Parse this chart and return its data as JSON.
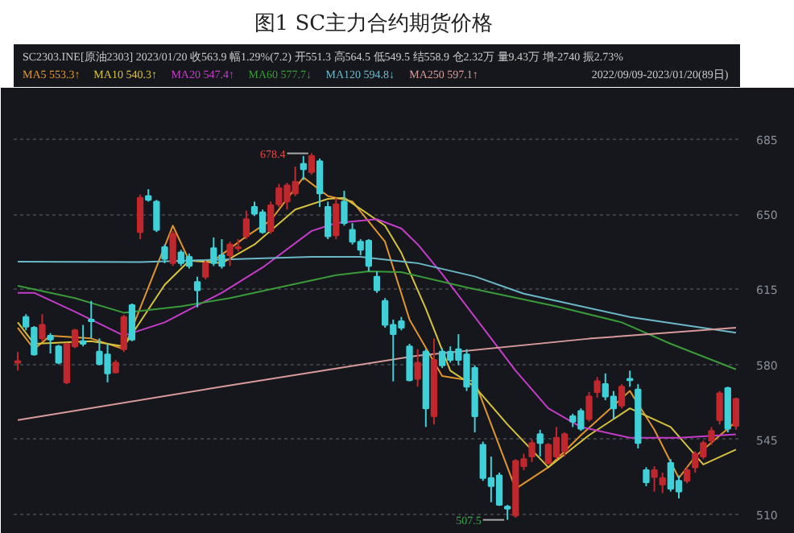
{
  "chart_data": {
    "type": "candlestick",
    "title": "图1  SC主力合约期货价格",
    "annotations": [
      "SC2303.INE[原油2303]",
      "2023/01/20",
      "收563.9",
      "幅1.29%(7.2)",
      "开551.3",
      "高564.5",
      "低549.5",
      "结558.9",
      "仓2.32万",
      "量9.43万",
      "增-2740",
      "振2.73%",
      "2022/09/09-2023/01/20(89日)",
      "678.4",
      "507.5"
    ],
    "categories": [
      null,
      null,
      null,
      null,
      null,
      null,
      null,
      null,
      null,
      null,
      null,
      null,
      null,
      null,
      null,
      null,
      null,
      null,
      null,
      null,
      null,
      null,
      null,
      null,
      null,
      null,
      null,
      null,
      null,
      null,
      null,
      null,
      null,
      null,
      null,
      null,
      null,
      null,
      null,
      null,
      null,
      null,
      null,
      null,
      null,
      null,
      null,
      null,
      null,
      null,
      null,
      null,
      null,
      null,
      null,
      null,
      null,
      null,
      null,
      null,
      null,
      null,
      null,
      null,
      null,
      null,
      null,
      null,
      null,
      null,
      null,
      null,
      null,
      null,
      null,
      null,
      null,
      null,
      null,
      null,
      null,
      null,
      null,
      null,
      null,
      null,
      null,
      null,
      null
    ],
    "ohlc": [
      [
        580.8,
        585.8,
        577.1,
        581.5
      ],
      [
        602.1,
        603.4,
        595.9,
        597.6
      ],
      [
        597.1,
        597.9,
        584.1,
        584.6
      ],
      [
        592.1,
        603.4,
        590.8,
        598.4
      ],
      [
        593.4,
        594.6,
        585.1,
        591.6
      ],
      [
        588.4,
        589.1,
        580.1,
        580.8
      ],
      [
        571.6,
        590.1,
        570.8,
        589.6
      ],
      [
        588.4,
        596.6,
        587.6,
        595.9
      ],
      [
        590.8,
        598.4,
        588.4,
        589.6
      ],
      [
        600.9,
        609.6,
        592.1,
        600.1
      ],
      [
        585.9,
        592.1,
        579.6,
        580.1
      ],
      [
        584.6,
        589.6,
        571.6,
        575.8
      ],
      [
        576.3,
        582.1,
        575.8,
        580.8
      ],
      [
        587.1,
        603.1,
        585.8,
        602.1
      ],
      [
        607.6,
        608.4,
        590.8,
        591.6
      ],
      [
        641.7,
        659.2,
        638.4,
        657.7
      ],
      [
        658.5,
        661.7,
        655.9,
        656.7
      ],
      [
        655.9,
        656.7,
        641.7,
        642.7
      ],
      [
        634.7,
        635.9,
        627.2,
        629.2
      ],
      [
        627.2,
        642.2,
        625.9,
        640.9
      ],
      [
        632.2,
        633.4,
        625.9,
        627.2
      ],
      [
        630.2,
        631.7,
        624.7,
        625.9
      ],
      [
        618.4,
        620.9,
        606.6,
        614.6
      ],
      [
        620.9,
        628.4,
        619.6,
        627.2
      ],
      [
        634.2,
        639.2,
        625.9,
        627.2
      ],
      [
        630.9,
        638.4,
        624.7,
        625.9
      ],
      [
        630.9,
        637.2,
        625.9,
        635.9
      ],
      [
        634.2,
        638.4,
        632.7,
        634.7
      ],
      [
        639.7,
        651.7,
        638.4,
        647.7
      ],
      [
        653.4,
        655.9,
        649.2,
        650.2
      ],
      [
        650.9,
        652.2,
        640.9,
        641.7
      ],
      [
        642.2,
        655.9,
        640.9,
        654.2
      ],
      [
        654.7,
        664.2,
        653.4,
        662.2
      ],
      [
        656.0,
        664.7,
        652.2,
        663.5
      ],
      [
        659.7,
        672.2,
        658.5,
        665.2
      ],
      [
        673.5,
        677.2,
        666.0,
        671.0
      ],
      [
        669.7,
        678.4,
        668.5,
        677.2
      ],
      [
        674.7,
        676.0,
        653.4,
        659.7
      ],
      [
        653.4,
        655.9,
        638.4,
        639.7
      ],
      [
        640.2,
        657.7,
        638.4,
        654.7
      ],
      [
        655.9,
        661.0,
        644.7,
        645.9
      ],
      [
        642.7,
        645.9,
        635.9,
        637.2
      ],
      [
        637.2,
        638.4,
        630.9,
        633.4
      ],
      [
        637.7,
        638.4,
        623.4,
        625.9
      ],
      [
        620.9,
        623.4,
        613.4,
        614.6
      ],
      [
        609.6,
        610.9,
        597.1,
        598.4
      ],
      [
        598.4,
        600.9,
        572.1,
        594.1
      ],
      [
        600.1,
        602.1,
        595.9,
        597.1
      ],
      [
        588.4,
        589.6,
        572.1,
        572.6
      ],
      [
        573.3,
        587.1,
        569.6,
        580.8
      ],
      [
        585.9,
        587.1,
        550.8,
        559.5
      ],
      [
        555.8,
        592.1,
        552.0,
        582.1
      ],
      [
        585.9,
        587.6,
        578.3,
        579.6
      ],
      [
        585.9,
        588.4,
        580.8,
        582.1
      ],
      [
        587.1,
        594.1,
        579.6,
        582.1
      ],
      [
        584.6,
        587.1,
        567.6,
        569.6
      ],
      [
        578.3,
        579.6,
        548.3,
        555.8
      ],
      [
        542.5,
        544.0,
        525.7,
        527.0
      ],
      [
        527.0,
        537.0,
        515.7,
        523.2
      ],
      [
        528.2,
        529.5,
        514.0,
        514.5
      ],
      [
        513.7,
        514.5,
        507.5,
        512.7
      ],
      [
        509.5,
        535.8,
        508.5,
        535.0
      ],
      [
        532.5,
        538.3,
        530.7,
        535.8
      ],
      [
        537.0,
        545.0,
        534.5,
        543.3
      ],
      [
        547.5,
        549.5,
        537.0,
        543.3
      ],
      [
        534.0,
        543.3,
        533.3,
        542.5
      ],
      [
        537.0,
        550.8,
        535.8,
        545.8
      ],
      [
        539.5,
        548.3,
        537.0,
        547.5
      ],
      [
        555.8,
        557.0,
        550.8,
        553.3
      ],
      [
        558.3,
        559.5,
        549.0,
        550.0
      ],
      [
        554.5,
        567.1,
        553.3,
        565.0
      ],
      [
        567.1,
        574.1,
        564.5,
        572.1
      ],
      [
        570.8,
        575.8,
        563.3,
        565.0
      ],
      [
        565.0,
        567.6,
        554.5,
        559.5
      ],
      [
        560.8,
        570.8,
        559.5,
        569.6
      ],
      [
        573.3,
        577.1,
        569.6,
        572.6
      ],
      [
        568.3,
        570.8,
        540.8,
        543.3
      ],
      [
        530.7,
        532.0,
        523.2,
        525.0
      ],
      [
        527.5,
        532.5,
        520.7,
        530.7
      ],
      [
        524.0,
        529.5,
        520.0,
        527.0
      ],
      [
        534.0,
        535.8,
        520.7,
        522.0
      ],
      [
        525.7,
        528.2,
        517.5,
        520.7
      ],
      [
        525.7,
        532.0,
        524.5,
        530.7
      ],
      [
        532.0,
        539.5,
        529.5,
        538.3
      ],
      [
        537.0,
        544.5,
        535.8,
        543.3
      ],
      [
        544.5,
        550.8,
        542.5,
        549.0
      ],
      [
        554.0,
        567.6,
        552.0,
        566.5
      ],
      [
        569.0,
        569.6,
        548.3,
        550.0
      ],
      [
        551.3,
        564.5,
        549.5,
        563.9
      ]
    ],
    "colors": [
      "#c0282d",
      "#3fd0d8",
      "#3fd0d8",
      "#c0282d",
      "#3fd0d8",
      "#3fd0d8",
      "#c0282d",
      "#c0282d",
      "#3fd0d8",
      "#3fd0d8",
      "#3fd0d8",
      "#3fd0d8",
      "#c0282d",
      "#c0282d",
      "#3fd0d8",
      "#c0282d",
      "#3fd0d8",
      "#3fd0d8",
      "#3fd0d8",
      "#c0282d",
      "#3fd0d8",
      "#3fd0d8",
      "#3fd0d8",
      "#c0282d",
      "#3fd0d8",
      "#3fd0d8",
      "#c0282d",
      "#c0282d",
      "#c0282d",
      "#3fd0d8",
      "#3fd0d8",
      "#c0282d",
      "#c0282d",
      "#c0282d",
      "#c0282d",
      "#3fd0d8",
      "#c0282d",
      "#3fd0d8",
      "#3fd0d8",
      "#c0282d",
      "#3fd0d8",
      "#3fd0d8",
      "#3fd0d8",
      "#3fd0d8",
      "#3fd0d8",
      "#3fd0d8",
      "#3fd0d8",
      "#3fd0d8",
      "#3fd0d8",
      "#c0282d",
      "#3fd0d8",
      "#c0282d",
      "#3fd0d8",
      "#3fd0d8",
      "#3fd0d8",
      "#3fd0d8",
      "#3fd0d8",
      "#3fd0d8",
      "#3fd0d8",
      "#3fd0d8",
      "#3fd0d8",
      "#c0282d",
      "#c0282d",
      "#c0282d",
      "#3fd0d8",
      "#c0282d",
      "#c0282d",
      "#c0282d",
      "#3fd0d8",
      "#3fd0d8",
      "#c0282d",
      "#c0282d",
      "#3fd0d8",
      "#3fd0d8",
      "#c0282d",
      "#3fd0d8",
      "#3fd0d8",
      "#3fd0d8",
      "#c0282d",
      "#c0282d",
      "#3fd0d8",
      "#3fd0d8",
      "#c0282d",
      "#c0282d",
      "#c0282d",
      "#c0282d",
      "#c0282d",
      "#3fd0d8",
      "#c0282d"
    ],
    "series": [
      {
        "type": "line",
        "name": "MA5 553.3↑",
        "color": "#e0952f",
        "values": [
          597.1,
          null,
          587.1,
          null,
          593.4,
          null,
          null,
          null,
          null,
          592.1,
          null,
          null,
          null,
          587.1,
          null,
          null,
          null,
          null,
          null,
          644.7,
          null,
          628.4,
          null,
          null,
          628.4,
          null,
          null,
          null,
          639.7,
          null,
          null,
          647.2,
          null,
          null,
          null,
          667.2,
          null,
          null,
          658.5,
          null,
          null,
          656.0,
          null,
          null,
          null,
          637.2,
          null,
          null,
          600.9,
          null,
          null,
          null,
          574.6,
          null,
          null,
          null,
          572.1,
          null,
          null,
          null,
          null,
          522.0,
          null,
          null,
          null,
          532.0,
          null,
          null,
          null,
          547.0,
          null,
          null,
          null,
          null,
          null,
          567.6,
          null,
          null,
          549.5,
          null,
          null,
          527.0,
          null,
          537.0,
          null,
          null,
          null,
          null,
          553.3
        ]
      },
      {
        "type": "line",
        "name": "MA10 540.3↑",
        "color": "#d6c23c",
        "values": [
          599.6,
          null,
          589.6,
          null,
          null,
          null,
          null,
          null,
          null,
          590.8,
          null,
          null,
          null,
          588.4,
          null,
          null,
          null,
          null,
          617.1,
          null,
          null,
          628.4,
          null,
          null,
          null,
          627.2,
          null,
          null,
          null,
          635.9,
          null,
          null,
          null,
          null,
          652.2,
          null,
          null,
          null,
          657.2,
          null,
          657.7,
          null,
          null,
          null,
          null,
          644.7,
          null,
          632.0,
          null,
          null,
          606.0,
          null,
          null,
          577.1,
          null,
          null,
          569.6,
          null,
          null,
          null,
          552.0,
          null,
          null,
          null,
          null,
          532.0,
          null,
          null,
          null,
          null,
          547.0,
          null,
          null,
          null,
          null,
          559.5,
          null,
          null,
          null,
          null,
          550.8,
          null,
          null,
          null,
          533.3,
          null,
          null,
          null,
          540.3
        ]
      },
      {
        "type": "line",
        "name": "MA20 547.4↑",
        "color": "#c43cc8",
        "values": [
          613.4,
          null,
          613.4,
          null,
          null,
          null,
          null,
          604.6,
          null,
          null,
          null,
          null,
          null,
          593.4,
          null,
          null,
          null,
          null,
          599.6,
          null,
          null,
          null,
          null,
          null,
          null,
          613.4,
          null,
          null,
          null,
          null,
          625.2,
          null,
          null,
          null,
          null,
          null,
          642.2,
          null,
          null,
          645.9,
          null,
          null,
          null,
          null,
          647.7,
          null,
          null,
          643.4,
          null,
          636.0,
          null,
          null,
          622.1,
          null,
          null,
          null,
          602.1,
          null,
          null,
          null,
          null,
          577.1,
          null,
          null,
          null,
          559.5,
          null,
          null,
          null,
          550.8,
          null,
          null,
          null,
          null,
          null,
          545.8,
          null,
          null,
          null,
          null,
          null,
          545.8,
          null,
          null,
          null,
          null,
          null,
          null,
          547.4
        ]
      },
      {
        "type": "line",
        "name": "MA60 577.7↓",
        "color": "#3a9a3a",
        "values": [
          616.6,
          null,
          null,
          null,
          null,
          null,
          null,
          610.9,
          null,
          null,
          null,
          null,
          null,
          604.1,
          null,
          null,
          null,
          null,
          null,
          null,
          607.1,
          null,
          null,
          null,
          null,
          null,
          610.9,
          null,
          null,
          null,
          null,
          null,
          615.9,
          null,
          null,
          null,
          null,
          null,
          null,
          621.6,
          null,
          null,
          null,
          623.4,
          null,
          null,
          null,
          623.0,
          null,
          null,
          null,
          null,
          null,
          null,
          null,
          615.9,
          null,
          null,
          null,
          null,
          null,
          null,
          null,
          null,
          null,
          null,
          607.1,
          null,
          null,
          null,
          null,
          null,
          null,
          null,
          599.6,
          null,
          null,
          null,
          null,
          null,
          589.6,
          null,
          null,
          null,
          null,
          null,
          null,
          null,
          577.7
        ]
      },
      {
        "type": "line",
        "name": "MA120 594.8↓",
        "color": "#6cb8c8",
        "values": [
          627.9,
          null,
          null,
          null,
          null,
          null,
          null,
          null,
          null,
          null,
          null,
          null,
          null,
          null,
          null,
          627.7,
          null,
          null,
          null,
          null,
          null,
          null,
          null,
          null,
          null,
          null,
          null,
          null,
          null,
          null,
          null,
          null,
          null,
          null,
          null,
          null,
          630.2,
          null,
          null,
          null,
          null,
          null,
          630.2,
          null,
          null,
          null,
          null,
          null,
          null,
          627.2,
          null,
          null,
          null,
          null,
          null,
          null,
          621.0,
          null,
          null,
          null,
          null,
          null,
          613.0,
          null,
          null,
          null,
          null,
          null,
          null,
          null,
          null,
          null,
          null,
          null,
          null,
          602.1,
          null,
          null,
          null,
          null,
          null,
          null,
          null,
          null,
          null,
          null,
          null,
          null,
          594.8
        ]
      },
      {
        "type": "line",
        "name": "MA250 597.1↑",
        "color": "#d89a9a",
        "values": [
          554.0,
          null,
          null,
          null,
          null,
          null,
          null,
          null,
          null,
          null,
          null,
          null,
          null,
          null,
          null,
          null,
          null,
          null,
          null,
          null,
          null,
          null,
          null,
          null,
          null,
          569.6,
          null,
          null,
          null,
          null,
          null,
          null,
          null,
          null,
          null,
          null,
          null,
          null,
          null,
          null,
          null,
          null,
          null,
          null,
          null,
          null,
          null,
          null,
          null,
          584.1,
          null,
          null,
          null,
          null,
          null,
          null,
          null,
          null,
          null,
          null,
          null,
          null,
          null,
          null,
          null,
          null,
          null,
          null,
          null,
          null,
          592.0,
          null,
          null,
          null,
          null,
          null,
          null,
          null,
          null,
          null,
          null,
          null,
          null,
          null,
          null,
          null,
          null,
          null,
          597.1
        ]
      }
    ],
    "ylim": [
      505.5,
      706
    ],
    "yticks": [
      510,
      545,
      580,
      615,
      650,
      685
    ],
    "grid": "y",
    "legend": "top left"
  }
}
